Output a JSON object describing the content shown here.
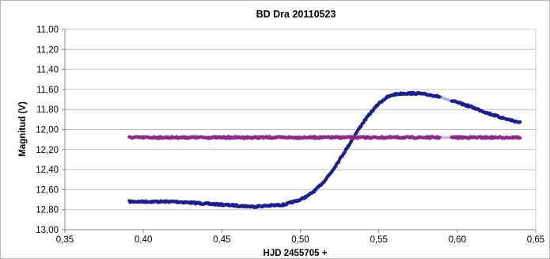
{
  "chart_data": {
    "type": "scatter",
    "title": "BD Dra 20110523",
    "xlabel": "HJD  2455705 +",
    "ylabel": "Magnitud (V)",
    "xlim": [
      0.35,
      0.65
    ],
    "ylim": [
      11.0,
      13.0
    ],
    "y_inverted": true,
    "grid": "horizontal",
    "x_ticks": [
      "0,35",
      "0,40",
      "0,45",
      "0,50",
      "0,55",
      "0,60",
      "0,65"
    ],
    "y_ticks": [
      "11,00",
      "11,20",
      "11,40",
      "11,60",
      "11,80",
      "12,00",
      "12,20",
      "12,40",
      "12,60",
      "12,80",
      "13,00"
    ],
    "series": [
      {
        "color": "#1f1f8a",
        "x": [
          0.391,
          0.4,
          0.41,
          0.42,
          0.43,
          0.44,
          0.45,
          0.46,
          0.47,
          0.48,
          0.49,
          0.5,
          0.505,
          0.51,
          0.515,
          0.52,
          0.525,
          0.53,
          0.535,
          0.54,
          0.545,
          0.55,
          0.555,
          0.56,
          0.565,
          0.57,
          0.575,
          0.58,
          0.585,
          0.59,
          0.595,
          0.6,
          0.61,
          0.62,
          0.63,
          0.64
        ],
        "y": [
          12.72,
          12.72,
          12.72,
          12.72,
          12.73,
          12.74,
          12.75,
          12.76,
          12.77,
          12.76,
          12.75,
          12.7,
          12.66,
          12.6,
          12.52,
          12.42,
          12.3,
          12.18,
          12.05,
          11.93,
          11.83,
          11.74,
          11.68,
          11.65,
          11.64,
          11.64,
          11.64,
          11.65,
          11.66,
          11.68,
          11.71,
          11.73,
          11.78,
          11.84,
          11.89,
          11.93
        ]
      },
      {
        "color": "#8b2a8b",
        "x": [
          0.391,
          0.4,
          0.41,
          0.42,
          0.43,
          0.44,
          0.45,
          0.46,
          0.47,
          0.48,
          0.49,
          0.5,
          0.51,
          0.52,
          0.53,
          0.54,
          0.55,
          0.56,
          0.57,
          0.58,
          0.59,
          0.595,
          0.6,
          0.61,
          0.62,
          0.63,
          0.64
        ],
        "y": [
          12.08,
          12.08,
          12.08,
          12.08,
          12.08,
          12.08,
          12.08,
          12.08,
          12.08,
          12.08,
          12.08,
          12.08,
          12.08,
          12.08,
          12.08,
          12.08,
          12.08,
          12.08,
          12.08,
          12.08,
          12.08,
          12.08,
          12.08,
          12.08,
          12.08,
          12.08,
          12.08
        ]
      }
    ],
    "gaps": [
      [
        0.589,
        0.596
      ]
    ]
  }
}
